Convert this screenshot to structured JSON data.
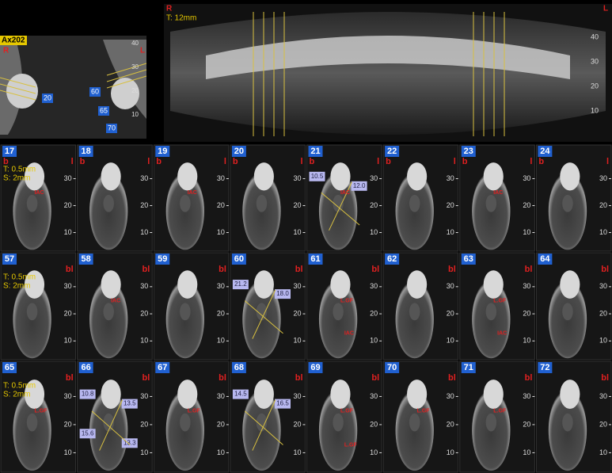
{
  "axial": {
    "label": "Ax202",
    "left": "R",
    "right": "L",
    "markers": [
      "20",
      "60",
      "65",
      "70"
    ],
    "scale": [
      "40",
      "30",
      "20",
      "10"
    ]
  },
  "panoramic": {
    "left": "R",
    "right": "L",
    "thickness": "T: 12mm",
    "scale": [
      "40",
      "30",
      "20",
      "10"
    ]
  },
  "sections": {
    "scale": [
      "30",
      "20",
      "10"
    ],
    "rows": [
      {
        "info": [
          "T: 0.5mm",
          "S: 2mm"
        ],
        "left": "b",
        "right": "l",
        "panels": [
          {
            "id": "17",
            "notes": [
              "IAC"
            ]
          },
          {
            "id": "18"
          },
          {
            "id": "19",
            "notes": [
              "IAC"
            ]
          },
          {
            "id": "20"
          },
          {
            "id": "21",
            "measures": [
              "10.5",
              "12.0"
            ],
            "notes": [
              "IAC"
            ]
          },
          {
            "id": "22"
          },
          {
            "id": "23",
            "notes": [
              "IAC"
            ]
          },
          {
            "id": "24"
          }
        ]
      },
      {
        "info": [
          "T: 0.5mm",
          "S: 2mm"
        ],
        "right": "bl",
        "panels": [
          {
            "id": "57"
          },
          {
            "id": "58",
            "notes": [
              "IAC"
            ]
          },
          {
            "id": "59"
          },
          {
            "id": "60",
            "measures": [
              "21.2",
              "18.0"
            ]
          },
          {
            "id": "61",
            "notes": [
              "L.GF",
              "IAC"
            ]
          },
          {
            "id": "62"
          },
          {
            "id": "63",
            "notes": [
              "L.GF",
              "IAC"
            ]
          },
          {
            "id": "64"
          }
        ]
      },
      {
        "info": [
          "T: 0.5mm",
          "S: 2mm"
        ],
        "right": "bl",
        "panels": [
          {
            "id": "65",
            "notes": [
              "L.GF"
            ]
          },
          {
            "id": "66",
            "measures": [
              "10.8",
              "13.5",
              "15.6",
              "13.3"
            ]
          },
          {
            "id": "67",
            "notes": [
              "L.GF"
            ]
          },
          {
            "id": "68",
            "measures": [
              "14.5",
              "16.5"
            ]
          },
          {
            "id": "69",
            "notes": [
              "L.GF",
              "L.GF"
            ]
          },
          {
            "id": "70",
            "notes": [
              "L.GF"
            ]
          },
          {
            "id": "71",
            "notes": [
              "L.GF"
            ]
          },
          {
            "id": "72"
          }
        ]
      }
    ]
  }
}
